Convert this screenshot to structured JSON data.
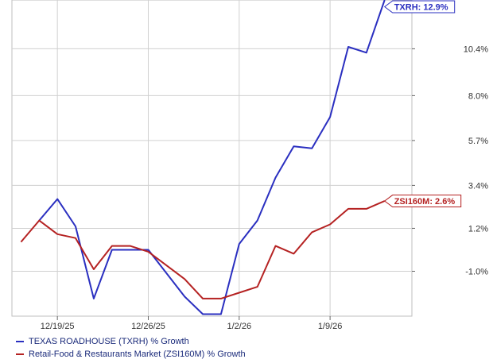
{
  "chart_data": {
    "type": "line",
    "x_dates": [
      "2025-12-17",
      "2025-12-18",
      "2025-12-19",
      "2025-12-22",
      "2025-12-23",
      "2025-12-24",
      "2025-12-25",
      "2025-12-26",
      "2025-12-29",
      "2025-12-30",
      "2025-12-31",
      "2026-01-01",
      "2026-01-02",
      "2026-01-05",
      "2026-01-06",
      "2026-01-07",
      "2026-01-08",
      "2026-01-09",
      "2026-01-12",
      "2026-01-13",
      "2026-01-14",
      "2026-01-15"
    ],
    "x_tick_labels": [
      {
        "label": "12/19/25",
        "date": "2025-12-19"
      },
      {
        "label": "12/26/25",
        "date": "2025-12-26"
      },
      {
        "label": "1/2/26",
        "date": "2026-01-02"
      },
      {
        "label": "1/9/26",
        "date": "2026-01-09"
      }
    ],
    "y_ticks": [
      {
        "value": -1.0,
        "label": "-1.0%"
      },
      {
        "value": 1.2,
        "label": "1.2%"
      },
      {
        "value": 3.4,
        "label": "3.4%"
      },
      {
        "value": 5.7,
        "label": "5.7%"
      },
      {
        "value": 8.0,
        "label": "8.0%"
      },
      {
        "value": 10.4,
        "label": "10.4%"
      }
    ],
    "ylim": [
      -3.3,
      12.9
    ],
    "grid": true,
    "legend_position": "bottom-left",
    "series": [
      {
        "name": "TEXAS ROADHOUSE (TXRH) % Growth",
        "color": "#2a2fc0",
        "end_label": "TXRH: 12.9%",
        "points": [
          {
            "date": "2025-12-18",
            "value": 1.6
          },
          {
            "date": "2025-12-19",
            "value": 2.7
          },
          {
            "date": "2025-12-22",
            "value": 1.3
          },
          {
            "date": "2025-12-23",
            "value": -2.4
          },
          {
            "date": "2025-12-24",
            "value": 0.1
          },
          {
            "date": "2025-12-26",
            "value": 0.1
          },
          {
            "date": "2025-12-30",
            "value": -2.3
          },
          {
            "date": "2025-12-31",
            "value": -3.2
          },
          {
            "date": "2026-01-01",
            "value": -3.2
          },
          {
            "date": "2026-01-02",
            "value": 0.4
          },
          {
            "date": "2026-01-05",
            "value": 1.6
          },
          {
            "date": "2026-01-06",
            "value": 3.8
          },
          {
            "date": "2026-01-07",
            "value": 5.4
          },
          {
            "date": "2026-01-08",
            "value": 5.3
          },
          {
            "date": "2026-01-09",
            "value": 6.9
          },
          {
            "date": "2026-01-12",
            "value": 10.5
          },
          {
            "date": "2026-01-13",
            "value": 10.2
          },
          {
            "date": "2026-01-14",
            "value": 12.9
          }
        ]
      },
      {
        "name": "Retail-Food & Restaurants Market (ZSI160M) % Growth",
        "color": "#b52222",
        "end_label": "ZSI160M: 2.6%",
        "points": [
          {
            "date": "2025-12-17",
            "value": 0.5
          },
          {
            "date": "2025-12-18",
            "value": 1.6
          },
          {
            "date": "2025-12-19",
            "value": 0.9
          },
          {
            "date": "2025-12-22",
            "value": 0.7
          },
          {
            "date": "2025-12-23",
            "value": -0.9
          },
          {
            "date": "2025-12-24",
            "value": 0.3
          },
          {
            "date": "2025-12-25",
            "value": 0.3
          },
          {
            "date": "2025-12-26",
            "value": 0.0
          },
          {
            "date": "2025-12-29",
            "value": -0.7
          },
          {
            "date": "2025-12-30",
            "value": -1.4
          },
          {
            "date": "2025-12-31",
            "value": -2.4
          },
          {
            "date": "2026-01-01",
            "value": -2.4
          },
          {
            "date": "2026-01-02",
            "value": -2.1
          },
          {
            "date": "2026-01-05",
            "value": -1.8
          },
          {
            "date": "2026-01-06",
            "value": 0.3
          },
          {
            "date": "2026-01-07",
            "value": -0.1
          },
          {
            "date": "2026-01-08",
            "value": 1.0
          },
          {
            "date": "2026-01-09",
            "value": 1.4
          },
          {
            "date": "2026-01-12",
            "value": 2.2
          },
          {
            "date": "2026-01-13",
            "value": 2.2
          },
          {
            "date": "2026-01-14",
            "value": 2.6
          }
        ]
      }
    ]
  }
}
